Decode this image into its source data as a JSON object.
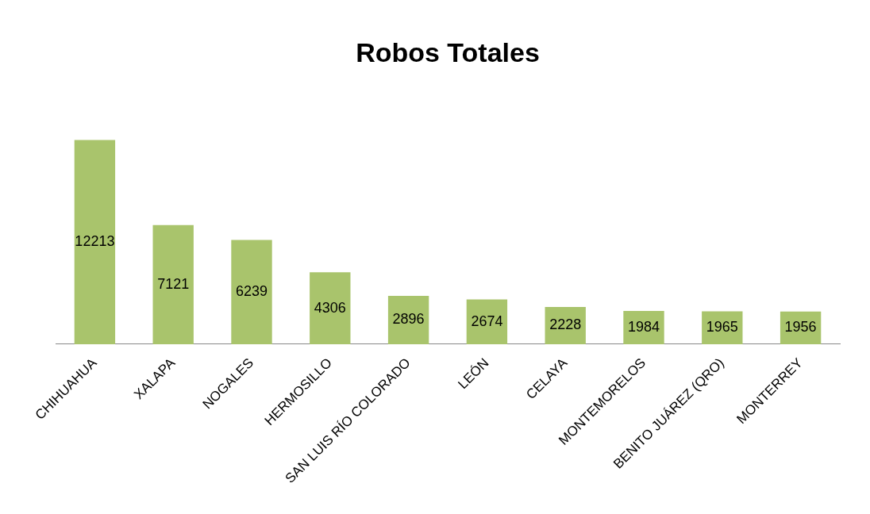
{
  "chart_data": {
    "type": "bar",
    "title": "Robos Totales",
    "categories": [
      "CHIHUAHUA",
      "XALAPA",
      "NOGALES",
      "HERMOSILLO",
      "SAN LUIS RÍO COLORADO",
      "LEÓN",
      "CELAYA",
      "MONTEMORELOS",
      "BENITO JUÁREZ (QRO)",
      "MONTERREY"
    ],
    "values": [
      12213,
      7121,
      6239,
      4306,
      2896,
      2674,
      2228,
      1984,
      1965,
      1956
    ],
    "color": "#a9c46c",
    "data_labels": true,
    "grid": false,
    "legend": false
  }
}
